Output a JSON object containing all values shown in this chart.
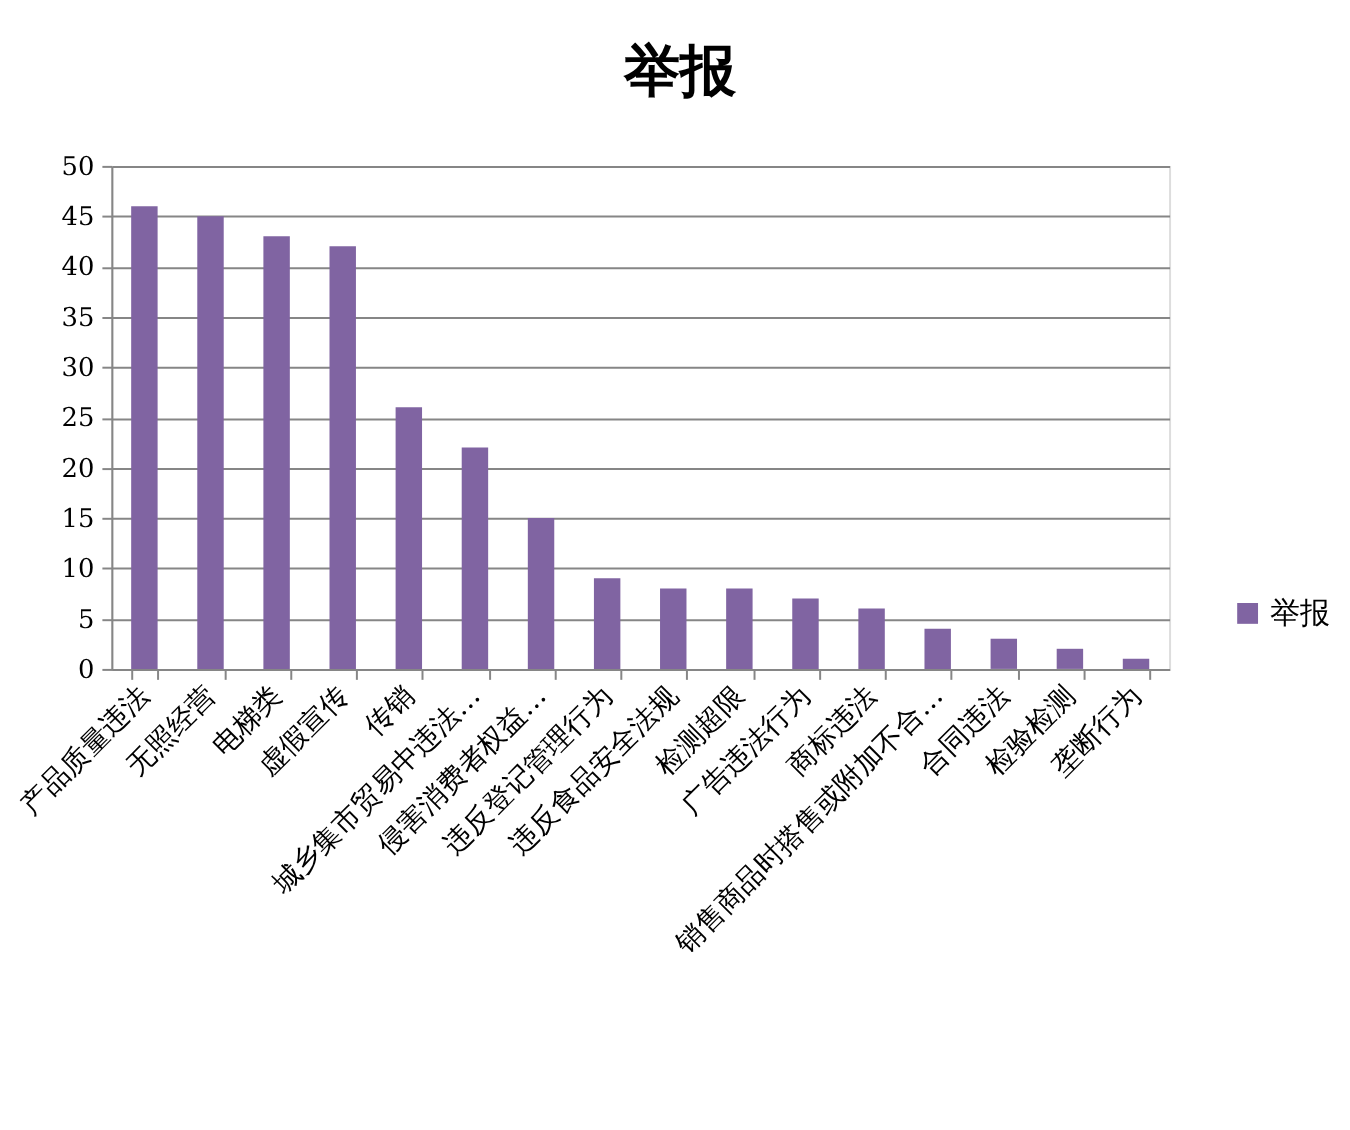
{
  "chart_data": {
    "type": "bar",
    "title": "举报",
    "categories": [
      "产品质量违法",
      "无照经营",
      "电梯类",
      "虚假宣传",
      "传销",
      "城乡集市贸易中违法…",
      "侵害消费者权益…",
      "违反登记管理行为",
      "违反食品安全法规",
      "检测超限",
      "广告违法行为",
      "商标违法",
      "销售商品时搭售或附加不合…",
      "合同违法",
      "检验检测",
      "垄断行为"
    ],
    "series": [
      {
        "name": "举报",
        "color": "#8064a2",
        "values": [
          46,
          45,
          43,
          42,
          26,
          22,
          15,
          9,
          8,
          8,
          7,
          6,
          4,
          3,
          2,
          1
        ]
      }
    ],
    "ylim": [
      0,
      50
    ],
    "yticks": [
      0,
      5,
      10,
      15,
      20,
      25,
      30,
      35,
      40,
      45,
      50
    ],
    "grid": "y",
    "legend": "right"
  }
}
